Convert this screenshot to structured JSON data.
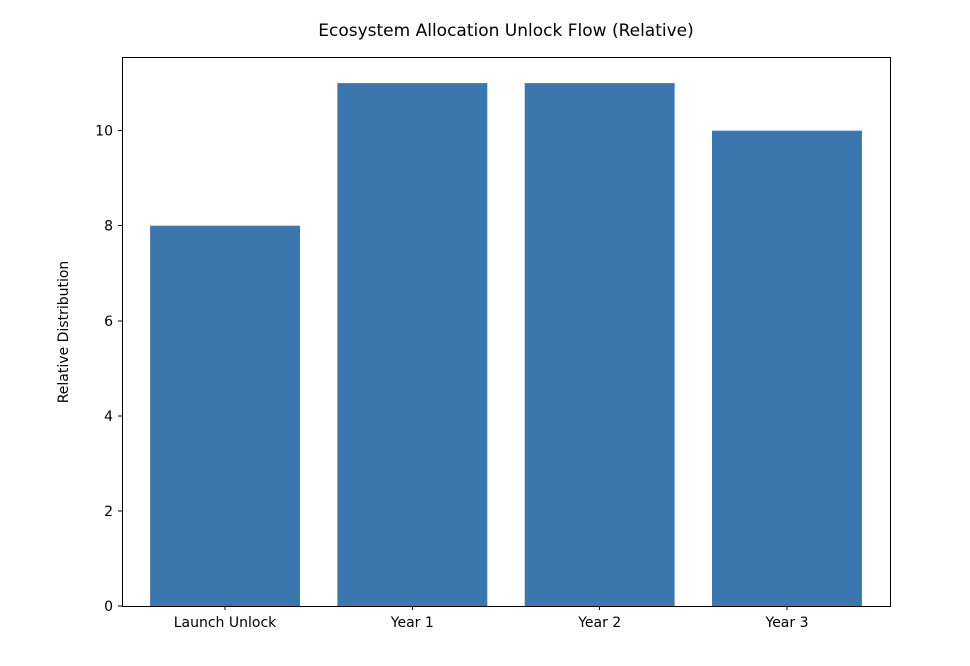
{
  "chart_data": {
    "type": "bar",
    "title": "Ecosystem Allocation Unlock Flow (Relative)",
    "categories": [
      "Launch Unlock",
      "Year 1",
      "Year 2",
      "Year 3"
    ],
    "values": [
      8,
      11,
      11,
      10
    ],
    "xlabel": "",
    "ylabel": "Relative Distribution",
    "yticks": [
      0,
      2,
      4,
      6,
      8,
      10
    ],
    "ylim": [
      0,
      11.55
    ],
    "grid": false,
    "legend": null,
    "bar_color": "#3b76af",
    "spine_color": "#000000",
    "tick_color": "#000000",
    "background_color": "#ffffff"
  }
}
